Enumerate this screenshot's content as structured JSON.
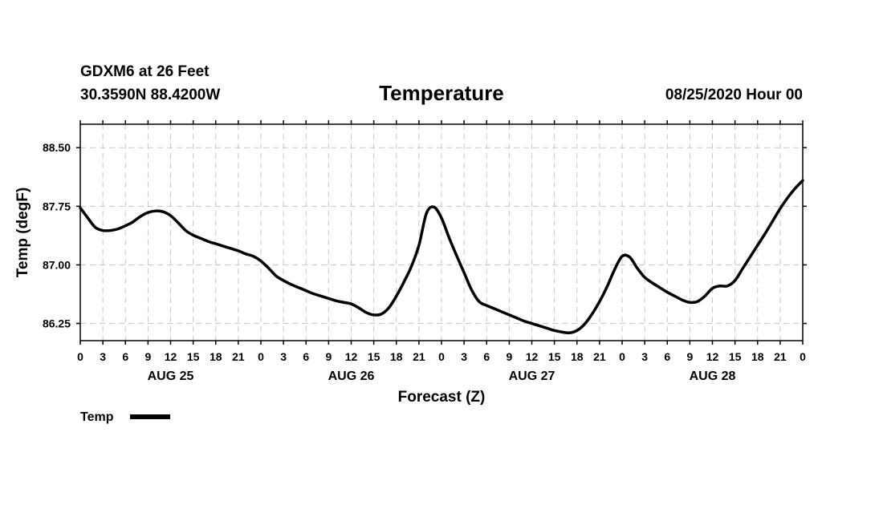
{
  "header": {
    "station": "GDXM6 at 26 Feet",
    "coords": "30.3590N 88.4200W",
    "date": "08/25/2020 Hour 00"
  },
  "chart_data": {
    "type": "line",
    "title": "Temperature",
    "xlabel": "Forecast (Z)",
    "ylabel": "Temp (degF)",
    "x_unit": "forecast hour",
    "xlim": [
      0,
      96
    ],
    "ylim": [
      86.03,
      88.8
    ],
    "yticks": [
      86.25,
      87.0,
      87.75,
      88.5
    ],
    "ytick_labels": [
      "86.25",
      "87.00",
      "87.75",
      "88.50"
    ],
    "x_tick_step_hours": 3,
    "x_tick_labels": [
      "0",
      "3",
      "6",
      "9",
      "12",
      "15",
      "18",
      "21",
      "0",
      "3",
      "6",
      "9",
      "12",
      "15",
      "18",
      "21",
      "0",
      "3",
      "6",
      "9",
      "12",
      "15",
      "18",
      "21",
      "0",
      "3",
      "6",
      "9",
      "12",
      "15",
      "18",
      "21",
      "0"
    ],
    "day_labels": [
      {
        "label": "AUG 25",
        "hour": 12
      },
      {
        "label": "AUG 26",
        "hour": 36
      },
      {
        "label": "AUG 27",
        "hour": 60
      },
      {
        "label": "AUG 28",
        "hour": 84
      }
    ],
    "grid": true,
    "legend": {
      "position": "bottom-left",
      "label": "Temp"
    },
    "series": [
      {
        "name": "Temp",
        "color": "#000000",
        "x": [
          0,
          1,
          2,
          3,
          4,
          5,
          6,
          7,
          8,
          9,
          10,
          11,
          12,
          13,
          14,
          15,
          16,
          17,
          18,
          19,
          20,
          21,
          22,
          23,
          24,
          25,
          26,
          27,
          28,
          29,
          30,
          31,
          32,
          33,
          34,
          35,
          36,
          37,
          38,
          39,
          40,
          41,
          42,
          43,
          44,
          45,
          46,
          47,
          48,
          49,
          50,
          51,
          52,
          53,
          54,
          55,
          56,
          57,
          58,
          59,
          60,
          61,
          62,
          63,
          64,
          65,
          66,
          67,
          68,
          69,
          70,
          71,
          72,
          73,
          74,
          75,
          76,
          77,
          78,
          79,
          80,
          81,
          82,
          83,
          84,
          85,
          86,
          87,
          88,
          89,
          90,
          91,
          92,
          93,
          94,
          95,
          96
        ],
        "y": [
          87.73,
          87.6,
          87.48,
          87.44,
          87.44,
          87.46,
          87.5,
          87.55,
          87.62,
          87.67,
          87.69,
          87.68,
          87.63,
          87.54,
          87.44,
          87.38,
          87.34,
          87.3,
          87.27,
          87.24,
          87.21,
          87.18,
          87.14,
          87.11,
          87.05,
          86.96,
          86.86,
          86.8,
          86.75,
          86.71,
          86.67,
          86.63,
          86.6,
          86.57,
          86.54,
          86.52,
          86.5,
          86.45,
          86.39,
          86.36,
          86.37,
          86.45,
          86.6,
          86.78,
          86.98,
          87.25,
          87.66,
          87.74,
          87.6,
          87.35,
          87.12,
          86.9,
          86.68,
          86.53,
          86.48,
          86.44,
          86.4,
          86.36,
          86.32,
          86.28,
          86.25,
          86.22,
          86.19,
          86.16,
          86.14,
          86.13,
          86.16,
          86.24,
          86.37,
          86.53,
          86.72,
          86.94,
          87.11,
          87.1,
          86.96,
          86.84,
          86.77,
          86.71,
          86.65,
          86.6,
          86.55,
          86.52,
          86.53,
          86.6,
          86.7,
          86.73,
          86.73,
          86.8,
          86.95,
          87.1,
          87.25,
          87.4,
          87.56,
          87.72,
          87.86,
          87.98,
          88.08
        ]
      }
    ]
  }
}
